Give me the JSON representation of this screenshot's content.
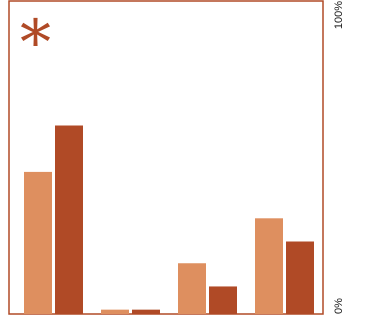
{
  "chart_data": {
    "type": "bar",
    "title": "",
    "xlabel": "",
    "ylabel": "",
    "ylim": [
      0,
      100
    ],
    "y_axis_position": "right",
    "y_tick_labels": [
      "0%",
      "100%"
    ],
    "legend": "none",
    "grid": false,
    "marker_glyph": "*",
    "marker_glyph_placement": "top-left",
    "categories": [
      "",
      "",
      "",
      ""
    ],
    "series": [
      {
        "color": "#de8f5f",
        "values": [
          49,
          1.5,
          17.5,
          33
        ]
      },
      {
        "color": "#b04a26",
        "values": [
          65,
          1.5,
          9.5,
          25
        ]
      }
    ]
  },
  "colors": {
    "frame": "#b04a26",
    "text": "#1a1a1a"
  }
}
